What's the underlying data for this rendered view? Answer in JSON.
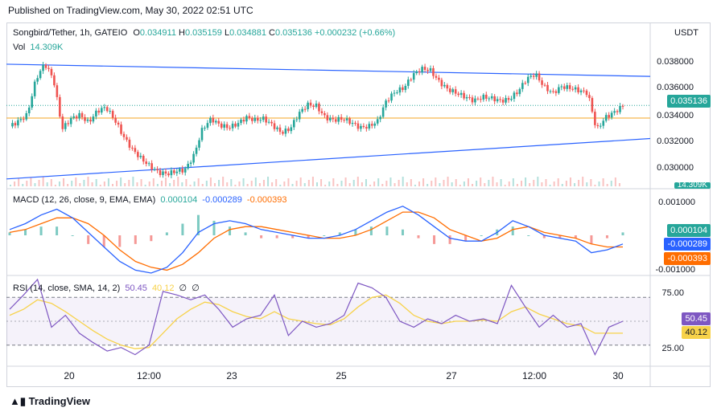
{
  "published": "Published on TradingView.com, May 30, 2022 02:51 UTC",
  "legend": {
    "symbol": "Songbird/Tether, 1h, GATEIO",
    "o_label": "O",
    "o": "0.034911",
    "h_label": "H",
    "h": "0.035159",
    "l_label": "L",
    "l": "0.034881",
    "c_label": "C",
    "c": "0.035136",
    "change": "+0.000232 (+0.66%)",
    "vol_label": "Vol",
    "vol": "14.309K"
  },
  "currency": "USDT",
  "price_labels": [
    "0.038000",
    "0.036000",
    "0.034000",
    "0.032000",
    "0.030000"
  ],
  "current_price_tag": "0.035136",
  "volume_tag": "14.309K",
  "macd": {
    "label": "MACD (12, 26, close, 9, EMA, EMA)",
    "hist": "0.000104",
    "macd": "-0.000289",
    "signal": "-0.000393",
    "axis_labels": [
      "0.001000",
      "-0.001000"
    ],
    "tags": [
      "0.000104",
      "-0.000289",
      "-0.000393"
    ]
  },
  "rsi": {
    "label": "RSI (14, close, SMA, 14, 2)",
    "rsi": "50.45",
    "sma": "40.12",
    "extra1": "∅",
    "extra2": "∅",
    "axis_labels": [
      "75.00",
      "25.00"
    ],
    "tags": [
      "50.45",
      "40.12"
    ]
  },
  "time_labels": [
    "20",
    "12:00",
    "23",
    "25",
    "27",
    "12:00",
    "30"
  ],
  "brand": "TradingView",
  "colors": {
    "up": "#26a69a",
    "down": "#ef5350",
    "trend": "#2962ff",
    "level": "#f5a623",
    "macd": "#2962ff",
    "signal": "#ff6d00",
    "rsi": "#7e57c2",
    "rsi_sma": "#f7d24a"
  },
  "chart_data": [
    {
      "type": "candlestick",
      "title": "Songbird/Tether, 1h, GATEIO",
      "ylabel": "USDT",
      "ylim": [
        0.0292,
        0.0396
      ],
      "x_ticks": [
        "20",
        "12:00",
        "23",
        "25",
        "27",
        "12:00",
        "30"
      ],
      "close_path": [
        0.0335,
        0.0339,
        0.0344,
        0.0372,
        0.0384,
        0.0372,
        0.0333,
        0.0341,
        0.0344,
        0.0338,
        0.0347,
        0.035,
        0.034,
        0.0327,
        0.0317,
        0.031,
        0.0304,
        0.0299,
        0.0298,
        0.03,
        0.0301,
        0.0312,
        0.0333,
        0.0341,
        0.0336,
        0.0334,
        0.0337,
        0.0342,
        0.034,
        0.0341,
        0.0336,
        0.033,
        0.0333,
        0.0345,
        0.0352,
        0.0351,
        0.0342,
        0.034,
        0.0341,
        0.0338,
        0.0334,
        0.0335,
        0.0339,
        0.0355,
        0.0362,
        0.0365,
        0.0375,
        0.038,
        0.0379,
        0.037,
        0.0364,
        0.0361,
        0.0358,
        0.0355,
        0.0358,
        0.0357,
        0.0355,
        0.0356,
        0.0362,
        0.0372,
        0.0376,
        0.0366,
        0.0361,
        0.0366,
        0.0365,
        0.0363,
        0.0361,
        0.0332,
        0.0342,
        0.0346,
        0.0351
      ],
      "horizontal_level": 0.03415,
      "trendlines": [
        {
          "from": [
            0,
            0.03835
          ],
          "to": [
            1,
            0.0374
          ]
        },
        {
          "from": [
            0,
            0.0294
          ],
          "to": [
            1,
            0.03255
          ]
        }
      ],
      "volume_last": "14.309K"
    },
    {
      "type": "line",
      "title": "MACD (12, 26, close, 9, EMA, EMA)",
      "ylim": [
        -0.0013,
        0.0013
      ],
      "series": [
        {
          "name": "MACD",
          "values": [
            0.0002,
            0.0004,
            0.0007,
            0.0009,
            0.0006,
            0.0001,
            -0.0004,
            -0.0009,
            -0.0012,
            -0.0013,
            -0.0011,
            -0.0006,
            0.0001,
            0.0004,
            0.0005,
            0.0004,
            0.0002,
            0.0001,
            0.0,
            -0.0001,
            -0.0001,
            0.0,
            0.0002,
            0.0005,
            0.0008,
            0.001,
            0.0007,
            0.0003,
            -0.0001,
            -0.0002,
            -0.0002,
            0.0001,
            0.0005,
            0.0003,
            0.0,
            -0.0001,
            -0.0002,
            -0.0006,
            -0.0005,
            -0.0003
          ]
        },
        {
          "name": "Signal",
          "values": [
            0.0001,
            0.0002,
            0.0004,
            0.0006,
            0.0006,
            0.0004,
            0.0,
            -0.0005,
            -0.0009,
            -0.0011,
            -0.0012,
            -0.001,
            -0.0006,
            -0.0001,
            0.0002,
            0.0003,
            0.0003,
            0.0002,
            0.0001,
            0.0,
            -0.0001,
            -0.0001,
            0.0,
            0.0002,
            0.0005,
            0.0008,
            0.0008,
            0.0006,
            0.0002,
            0.0,
            -0.0002,
            -0.0001,
            0.0002,
            0.0003,
            0.0001,
            0.0,
            -0.0001,
            -0.0003,
            -0.0004,
            -0.0004
          ]
        }
      ]
    },
    {
      "type": "line",
      "title": "RSI (14, close, SMA, 14, 2)",
      "ylim": [
        15,
        85
      ],
      "series": [
        {
          "name": "RSI",
          "values": [
            60,
            72,
            85,
            45,
            55,
            40,
            32,
            25,
            28,
            22,
            30,
            75,
            72,
            68,
            72,
            60,
            45,
            52,
            55,
            72,
            38,
            50,
            45,
            48,
            55,
            82,
            78,
            70,
            50,
            45,
            52,
            48,
            55,
            50,
            52,
            48,
            80,
            62,
            45,
            55,
            45,
            48,
            22,
            45,
            50
          ]
        },
        {
          "name": "SMA",
          "values": [
            55,
            60,
            68,
            65,
            58,
            50,
            42,
            35,
            30,
            27,
            28,
            40,
            52,
            60,
            66,
            64,
            58,
            54,
            52,
            58,
            52,
            50,
            48,
            47,
            52,
            62,
            70,
            72,
            65,
            55,
            50,
            48,
            50,
            50,
            51,
            50,
            58,
            62,
            56,
            52,
            48,
            46,
            40,
            40,
            40
          ]
        }
      ]
    }
  ]
}
